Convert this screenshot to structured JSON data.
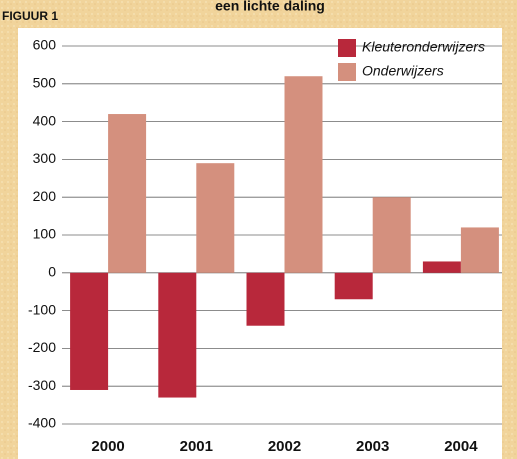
{
  "chart_data": {
    "type": "bar",
    "title": "een lichte daling",
    "figure_label": "FIGUUR 1",
    "categories": [
      "2000",
      "2001",
      "2002",
      "2003",
      "2004"
    ],
    "series": [
      {
        "name": "Kleuteronderwijzers",
        "color": "#b8283b",
        "values": [
          -310,
          -330,
          -140,
          -70,
          30
        ]
      },
      {
        "name": "Onderwijzers",
        "color": "#d4907e",
        "values": [
          420,
          290,
          520,
          200,
          120
        ]
      }
    ],
    "ylim": [
      -400,
      600
    ],
    "yticks": [
      -400,
      -300,
      -200,
      -100,
      0,
      100,
      200,
      300,
      400,
      500,
      600
    ],
    "grid": true,
    "legend": "top-right"
  }
}
